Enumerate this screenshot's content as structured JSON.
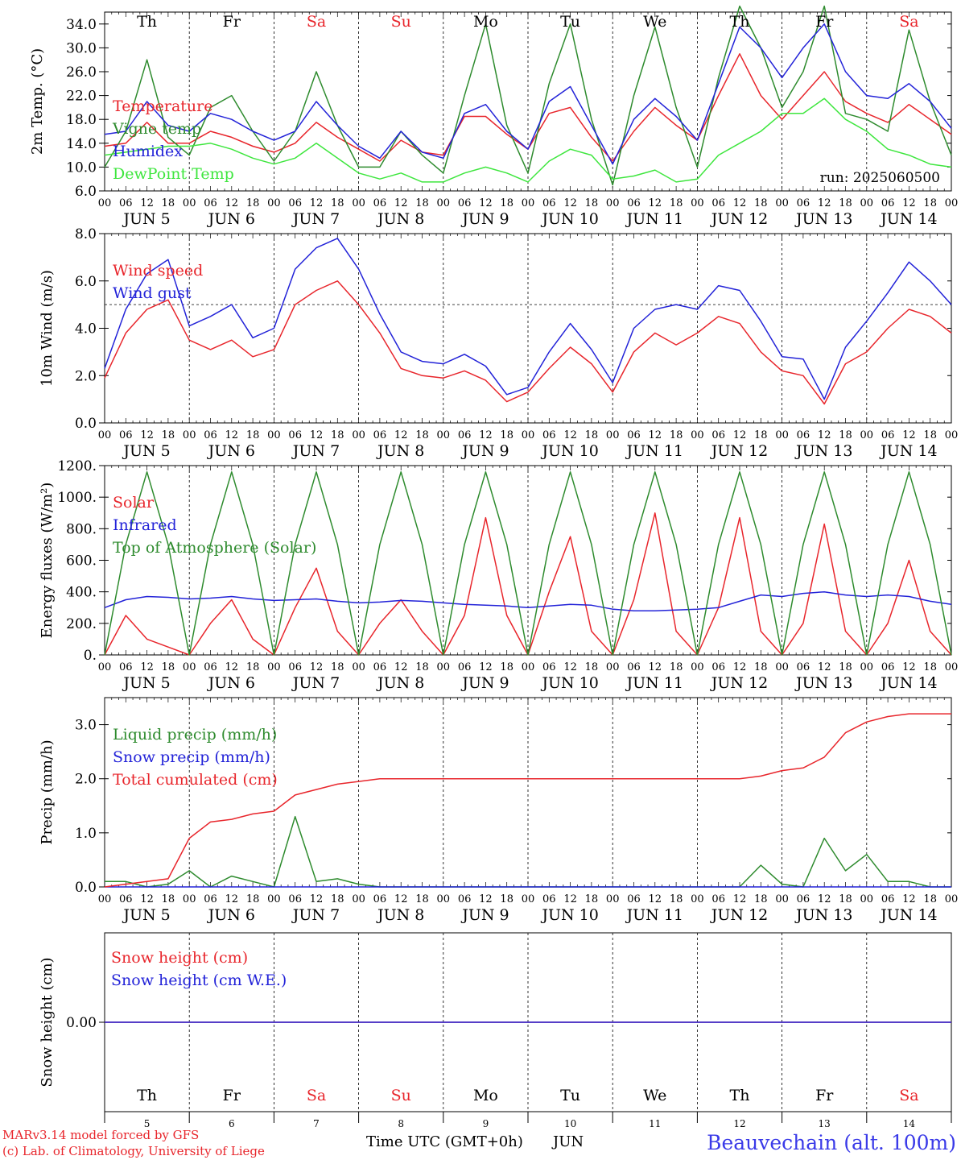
{
  "header": {
    "day_labels": [
      {
        "text": "Th",
        "color": "#000000"
      },
      {
        "text": "Fr",
        "color": "#000000"
      },
      {
        "text": "Sa",
        "color": "#e8262c"
      },
      {
        "text": "Su",
        "color": "#e8262c"
      },
      {
        "text": "Mo",
        "color": "#000000"
      },
      {
        "text": "Tu",
        "color": "#000000"
      },
      {
        "text": "We",
        "color": "#000000"
      },
      {
        "text": "Th",
        "color": "#000000"
      },
      {
        "text": "Fr",
        "color": "#000000"
      },
      {
        "text": "Sa",
        "color": "#e8262c"
      }
    ],
    "date_labels": [
      "JUN  5",
      "JUN  6",
      "JUN  7",
      "JUN  8",
      "JUN  9",
      "JUN 10",
      "JUN 11",
      "JUN 12",
      "JUN 13",
      "JUN 14"
    ],
    "hour_labels": [
      "00",
      "06",
      "12",
      "18"
    ],
    "run_label": "run: 2025060500"
  },
  "footer": {
    "model_credit": "MARv3.14 model forced by GFS",
    "lab_credit": "(c) Lab. of Climatology, University of Liege",
    "xlabel": "Time UTC (GMT+0h)",
    "month": "JUN",
    "day_numbers": [
      "5",
      "6",
      "7",
      "8",
      "9",
      "10",
      "11",
      "12",
      "13",
      "14"
    ],
    "station": "Beauvechain (alt. 100m)"
  },
  "colors": {
    "red": "#e8262c",
    "blue": "#2323d8",
    "green": "#2e8b2e",
    "lightgreen": "#3ee63e",
    "station": "#3a3ae8"
  },
  "chart_data": [
    {
      "id": "temperature",
      "type": "line",
      "ylabel": "2m Temp. (°C)",
      "ylim": [
        6,
        36
      ],
      "ytick_labels": [
        "6.0",
        "10.0",
        "14.0",
        "18.0",
        "22.0",
        "26.0",
        "30.0",
        "34.0"
      ],
      "x_hours_from_jun5_00": [
        0,
        6,
        12,
        18,
        24,
        30,
        36,
        42,
        48,
        54,
        60,
        66,
        72,
        78,
        84,
        90,
        96,
        102,
        108,
        114,
        120,
        126,
        132,
        138,
        144,
        150,
        156,
        162,
        168,
        174,
        180,
        186,
        192,
        198,
        204,
        210,
        216,
        222,
        228,
        234,
        240
      ],
      "series": [
        {
          "name": "Temperature",
          "color": "red",
          "values": [
            13.5,
            14,
            17.5,
            14,
            14,
            16,
            15,
            13.5,
            12.5,
            14,
            17.5,
            15,
            13,
            11,
            14.5,
            12.5,
            12,
            18.5,
            18.5,
            15.5,
            13,
            19,
            20,
            15,
            11,
            16,
            20,
            17,
            14.5,
            22,
            29,
            22,
            18,
            22,
            26,
            21,
            19,
            17.5,
            20.5,
            18,
            15.5
          ]
        },
        {
          "name": "Vigne temp",
          "color": "green",
          "values": [
            10,
            16,
            28,
            15,
            12,
            20,
            22,
            16,
            11,
            16,
            26,
            17,
            10,
            10,
            16,
            12,
            9,
            22,
            34,
            17,
            9,
            24,
            34,
            18,
            7,
            22,
            33.5,
            20,
            10,
            25,
            37,
            30,
            20,
            26,
            37,
            19,
            18,
            16,
            33,
            21,
            12
          ]
        },
        {
          "name": "Humidex",
          "color": "blue",
          "values": [
            15.5,
            16,
            21,
            17,
            16,
            19,
            18,
            16,
            14.5,
            16,
            21,
            17,
            13.5,
            11.5,
            16,
            12.5,
            11.5,
            19,
            20.5,
            16,
            13,
            21,
            23.5,
            17,
            10.5,
            18,
            21.5,
            18.5,
            14.5,
            24,
            33.5,
            30,
            25,
            30,
            34,
            26,
            22,
            21.5,
            24,
            21,
            16.5
          ]
        },
        {
          "name": "DewPoint Temp",
          "color": "lightgreen",
          "values": [
            12,
            12.5,
            13,
            13.5,
            13.5,
            14,
            13,
            11.5,
            10.5,
            11.5,
            14,
            11.5,
            9,
            8,
            9,
            7.5,
            7.5,
            9,
            10,
            9,
            7.5,
            11,
            13,
            12,
            8,
            8.5,
            9.5,
            7.5,
            8,
            12,
            14,
            16,
            19,
            19,
            21.5,
            18,
            16,
            13,
            12,
            10.5,
            10
          ]
        }
      ]
    },
    {
      "id": "wind",
      "type": "line",
      "ylabel": "10m Wind (m/s)",
      "ylim": [
        0,
        8
      ],
      "ytick_labels": [
        "0.0",
        "2.0",
        "4.0",
        "6.0",
        "8.0"
      ],
      "reference_line": 5,
      "x_hours_from_jun5_00": [
        0,
        6,
        12,
        18,
        24,
        30,
        36,
        42,
        48,
        54,
        60,
        66,
        72,
        78,
        84,
        90,
        96,
        102,
        108,
        114,
        120,
        126,
        132,
        138,
        144,
        150,
        156,
        162,
        168,
        174,
        180,
        186,
        192,
        198,
        204,
        210,
        216,
        222,
        228,
        234,
        240
      ],
      "series": [
        {
          "name": "Wind speed",
          "color": "red",
          "values": [
            1.9,
            3.8,
            4.8,
            5.2,
            3.5,
            3.1,
            3.5,
            2.8,
            3.1,
            5.0,
            5.6,
            6.0,
            5.0,
            3.8,
            2.3,
            2.0,
            1.9,
            2.2,
            1.8,
            0.9,
            1.3,
            2.3,
            3.2,
            2.5,
            1.3,
            3.0,
            3.8,
            3.3,
            3.8,
            4.5,
            4.2,
            3.0,
            2.2,
            2.0,
            0.8,
            2.5,
            3.0,
            4.0,
            4.8,
            4.5,
            3.8
          ]
        },
        {
          "name": "Wind gust",
          "color": "blue",
          "values": [
            2.3,
            4.8,
            6.3,
            6.9,
            4.1,
            4.5,
            5.0,
            3.6,
            4.0,
            6.5,
            7.4,
            7.8,
            6.5,
            4.6,
            3.0,
            2.6,
            2.5,
            2.9,
            2.4,
            1.2,
            1.5,
            3.0,
            4.2,
            3.1,
            1.7,
            4.0,
            4.8,
            5.0,
            4.8,
            5.8,
            5.6,
            4.3,
            2.8,
            2.7,
            1.0,
            3.2,
            4.3,
            5.5,
            6.8,
            6.0,
            5.0
          ]
        }
      ]
    },
    {
      "id": "energy",
      "type": "line",
      "ylabel": "Energy fluxes (W/m²)",
      "ylim": [
        0,
        1200
      ],
      "ytick_labels": [
        "0.",
        "200.",
        "400.",
        "600.",
        "800.",
        "1000.",
        "1200."
      ],
      "x_hours_from_jun5_00": [
        0,
        6,
        12,
        18,
        24,
        30,
        36,
        42,
        48,
        54,
        60,
        66,
        72,
        78,
        84,
        90,
        96,
        102,
        108,
        114,
        120,
        126,
        132,
        138,
        144,
        150,
        156,
        162,
        168,
        174,
        180,
        186,
        192,
        198,
        204,
        210,
        216,
        222,
        228,
        234,
        240
      ],
      "series": [
        {
          "name": "Solar",
          "color": "red",
          "values": [
            0,
            250,
            100,
            50,
            0,
            200,
            350,
            100,
            0,
            300,
            550,
            150,
            0,
            200,
            350,
            150,
            0,
            250,
            870,
            250,
            0,
            400,
            750,
            150,
            0,
            350,
            900,
            150,
            0,
            300,
            870,
            150,
            0,
            200,
            830,
            150,
            0,
            200,
            600,
            150,
            0
          ]
        },
        {
          "name": "Infrared",
          "color": "blue",
          "values": [
            300,
            350,
            370,
            365,
            355,
            360,
            370,
            355,
            345,
            350,
            355,
            340,
            330,
            335,
            345,
            340,
            330,
            320,
            315,
            310,
            300,
            310,
            320,
            315,
            290,
            280,
            280,
            285,
            290,
            300,
            340,
            380,
            370,
            390,
            400,
            380,
            370,
            380,
            370,
            340,
            320
          ]
        },
        {
          "name": "Top of Atmosphere (Solar)",
          "color": "green",
          "values": [
            0,
            700,
            1160,
            700,
            0,
            700,
            1160,
            700,
            0,
            700,
            1160,
            700,
            0,
            700,
            1160,
            700,
            0,
            700,
            1160,
            700,
            0,
            700,
            1160,
            700,
            0,
            700,
            1160,
            700,
            0,
            700,
            1160,
            700,
            0,
            700,
            1160,
            700,
            0,
            700,
            1160,
            700,
            0
          ]
        }
      ]
    },
    {
      "id": "precip",
      "type": "line",
      "ylabel": "Precip (mm/h)",
      "ylim": [
        0,
        3.5
      ],
      "ytick_labels": [
        "0.0",
        "1.0",
        "2.0",
        "3.0"
      ],
      "x_hours_from_jun5_00": [
        0,
        6,
        12,
        18,
        24,
        30,
        36,
        42,
        48,
        54,
        60,
        66,
        72,
        78,
        84,
        90,
        96,
        102,
        108,
        114,
        120,
        126,
        132,
        138,
        144,
        150,
        156,
        162,
        168,
        174,
        180,
        186,
        192,
        198,
        204,
        210,
        216,
        222,
        228,
        234,
        240
      ],
      "series": [
        {
          "name": "Liquid precip (mm/h)",
          "color": "green",
          "values": [
            0.1,
            0.1,
            0,
            0.05,
            0.3,
            0,
            0.2,
            0.1,
            0,
            1.3,
            0.1,
            0.15,
            0.05,
            0,
            0,
            0,
            0,
            0,
            0,
            0,
            0,
            0,
            0,
            0,
            0,
            0,
            0,
            0,
            0,
            0,
            0,
            0.4,
            0.05,
            0,
            0.9,
            0.3,
            0.6,
            0.1,
            0.1,
            0,
            0
          ]
        },
        {
          "name": "Snow precip (mm/h)",
          "color": "blue",
          "values": [
            0,
            0,
            0,
            0,
            0,
            0,
            0,
            0,
            0,
            0,
            0,
            0,
            0,
            0,
            0,
            0,
            0,
            0,
            0,
            0,
            0,
            0,
            0,
            0,
            0,
            0,
            0,
            0,
            0,
            0,
            0,
            0,
            0,
            0,
            0,
            0,
            0,
            0,
            0,
            0,
            0
          ]
        },
        {
          "name": "Total cumulated (cm)",
          "color": "red",
          "values": [
            0,
            0.05,
            0.1,
            0.15,
            0.9,
            1.2,
            1.25,
            1.35,
            1.4,
            1.7,
            1.8,
            1.9,
            1.95,
            2.0,
            2.0,
            2.0,
            2.0,
            2.0,
            2.0,
            2.0,
            2.0,
            2.0,
            2.0,
            2.0,
            2.0,
            2.0,
            2.0,
            2.0,
            2.0,
            2.0,
            2.0,
            2.05,
            2.15,
            2.2,
            2.4,
            2.85,
            3.05,
            3.15,
            3.2,
            3.2,
            3.2
          ]
        }
      ]
    },
    {
      "id": "snow",
      "type": "line",
      "ylabel": "Snow height (cm)",
      "ytick_labels": [
        "0.00"
      ],
      "series": [
        {
          "name": "Snow height (cm)",
          "color": "red",
          "values": [
            0,
            0
          ]
        },
        {
          "name": "Snow height (cm W.E.)",
          "color": "blue",
          "values": [
            0,
            0
          ]
        }
      ]
    }
  ]
}
